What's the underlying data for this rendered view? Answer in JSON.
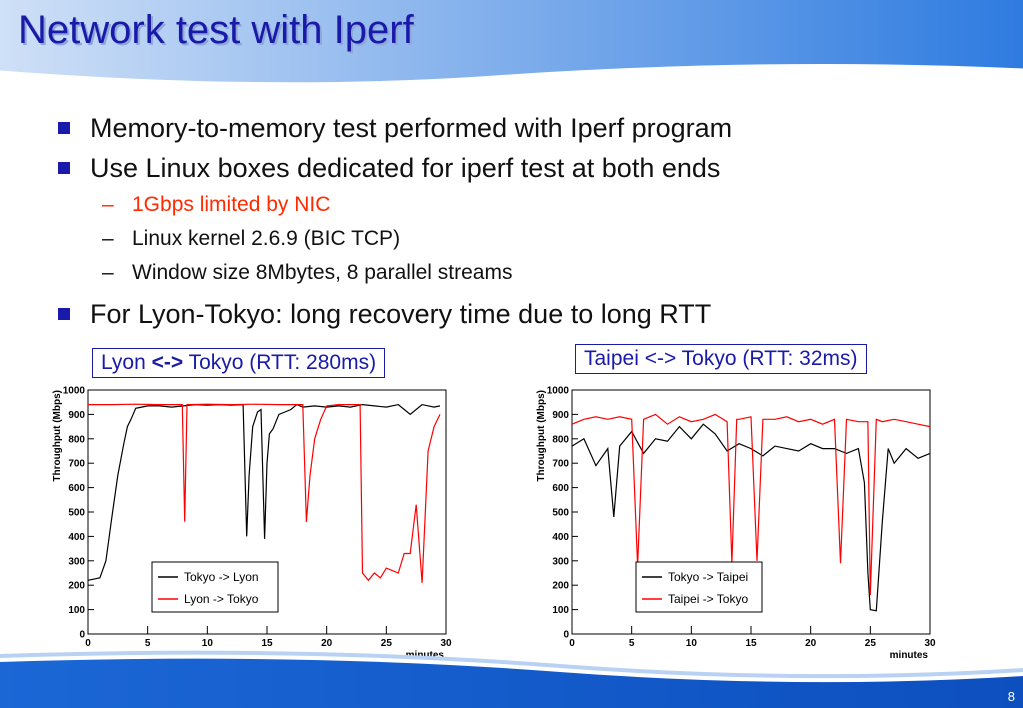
{
  "slide": {
    "title": "Network test with Iperf",
    "page_number": "8",
    "bullets": [
      "Memory-to-memory test performed with Iperf program",
      "Use Linux boxes dedicated for iperf test at both ends",
      "For Lyon-Tokyo: long recovery time due to long RTT"
    ],
    "sub_bullets": [
      "1Gbps limited by NIC",
      "Linux kernel 2.6.9 (BIC TCP)",
      "Window size 8Mbytes, 8 parallel streams"
    ],
    "dash": "–",
    "caption_left": {
      "pre": "Lyon ",
      "bold": "<->",
      "post": " Tokyo (RTT: 280ms)"
    },
    "caption_right": "Taipei <-> Tokyo (RTT: 32ms)",
    "colors": {
      "title": "#1a1aa8",
      "accent": "#1a1aa8",
      "highlight": "#ff2a00",
      "band": "#1b67d6"
    }
  },
  "chart_data": [
    {
      "type": "line",
      "title": "",
      "xlabel": "minutes",
      "ylabel": "Throughput (Mbps)",
      "xlim": [
        0,
        30
      ],
      "ylim": [
        0,
        1000
      ],
      "xticks": [
        "0",
        "5",
        "10",
        "15",
        "20",
        "25",
        "30"
      ],
      "yticks": [
        "0",
        "100",
        "200",
        "300",
        "400",
        "500",
        "600",
        "700",
        "800",
        "900",
        "1000"
      ],
      "legend_position": "bottom-left",
      "series": [
        {
          "name": "Tokyo -> Lyon",
          "color": "#000000",
          "x": [
            0,
            1,
            1.5,
            2,
            2.5,
            3,
            3.3,
            3.6,
            4,
            4.5,
            5,
            6,
            7,
            8,
            9,
            10,
            11,
            12,
            13,
            13.3,
            13.5,
            13.8,
            14.2,
            14.5,
            14.8,
            15.0,
            15.2,
            15.5,
            16,
            16.5,
            17,
            17.5,
            18,
            19,
            20,
            21,
            22,
            23,
            24,
            25,
            26,
            27,
            28,
            29,
            29.5
          ],
          "y": [
            220,
            230,
            300,
            480,
            650,
            780,
            850,
            880,
            925,
            930,
            935,
            935,
            930,
            935,
            940,
            938,
            940,
            938,
            940,
            400,
            650,
            850,
            910,
            920,
            390,
            700,
            820,
            840,
            900,
            910,
            920,
            940,
            930,
            935,
            930,
            935,
            930,
            940,
            935,
            930,
            940,
            900,
            940,
            930,
            935
          ]
        },
        {
          "name": "Lyon -> Tokyo",
          "color": "#ff0000",
          "x": [
            0,
            2,
            4,
            6,
            7.9,
            8.1,
            8.3,
            10,
            12,
            14,
            16,
            17.5,
            18,
            18.3,
            18.6,
            19,
            19.5,
            20,
            21,
            22.5,
            22.8,
            23,
            23.5,
            24,
            24.5,
            25,
            25.5,
            26,
            26.5,
            27,
            27.5,
            28,
            28.5,
            29,
            29.5
          ],
          "y": [
            940,
            940,
            942,
            940,
            940,
            460,
            940,
            942,
            940,
            942,
            940,
            940,
            940,
            460,
            650,
            800,
            880,
            935,
            940,
            940,
            940,
            250,
            220,
            250,
            230,
            270,
            260,
            250,
            330,
            330,
            530,
            210,
            750,
            850,
            900
          ]
        }
      ]
    },
    {
      "type": "line",
      "title": "",
      "xlabel": "minutes",
      "ylabel": "Throughput (Mbps)",
      "xlim": [
        0,
        30
      ],
      "ylim": [
        0,
        1000
      ],
      "xticks": [
        "0",
        "5",
        "10",
        "15",
        "20",
        "25",
        "30"
      ],
      "yticks": [
        "0",
        "100",
        "200",
        "300",
        "400",
        "500",
        "600",
        "700",
        "800",
        "900",
        "1000"
      ],
      "legend_position": "bottom-left",
      "series": [
        {
          "name": "Tokyo -> Taipei",
          "color": "#000000",
          "x": [
            0,
            1,
            2,
            3,
            3.5,
            4,
            5,
            6,
            7,
            8,
            9,
            10,
            11,
            12,
            13,
            14,
            15,
            16,
            17,
            18,
            19,
            20,
            21,
            22,
            23,
            24,
            24.5,
            24.8,
            25,
            25.5,
            26,
            26.5,
            27,
            28,
            29,
            30
          ],
          "y": [
            770,
            800,
            690,
            760,
            480,
            770,
            830,
            740,
            800,
            790,
            850,
            800,
            860,
            820,
            750,
            780,
            760,
            730,
            770,
            760,
            750,
            780,
            760,
            760,
            740,
            760,
            620,
            250,
            100,
            95,
            460,
            760,
            700,
            760,
            720,
            740
          ]
        },
        {
          "name": "Taipei -> Tokyo",
          "color": "#ff0000",
          "x": [
            0,
            1,
            2,
            3,
            4,
            5,
            5.5,
            6,
            7,
            8,
            9,
            10,
            11,
            12,
            13,
            13.4,
            13.8,
            14,
            15,
            15.5,
            16,
            17,
            18,
            19,
            20,
            21,
            22,
            22.5,
            23,
            24,
            24.8,
            25,
            25.5,
            26,
            27,
            28,
            29,
            30
          ],
          "y": [
            860,
            880,
            890,
            880,
            890,
            880,
            280,
            880,
            900,
            860,
            890,
            870,
            880,
            900,
            870,
            290,
            880,
            880,
            890,
            300,
            880,
            880,
            890,
            870,
            880,
            860,
            880,
            290,
            880,
            870,
            870,
            160,
            880,
            870,
            880,
            870,
            860,
            850
          ]
        }
      ]
    }
  ]
}
